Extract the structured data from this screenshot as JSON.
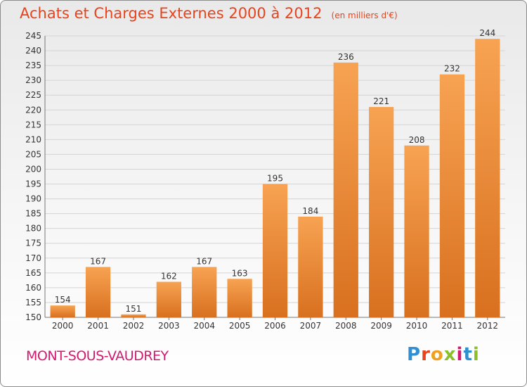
{
  "title": "Achats et Charges Externes 2000 à 2012",
  "unit_note": "(en milliers d'€)",
  "commune": "MONT-SOUS-VAUDREY",
  "logo": {
    "letters": [
      "P",
      "r",
      "o",
      "x",
      "i",
      "t",
      "i"
    ],
    "colors": [
      "#2f8fd0",
      "#e8431c",
      "#f0a020",
      "#8bbf2a",
      "#d11b6f",
      "#2f8fd0",
      "#8bbf2a"
    ]
  },
  "colors": {
    "bar_top": "#f7a352",
    "bar_bottom": "#d8701f",
    "title": "#e8431c",
    "commune": "#d11b6f"
  },
  "chart_data": {
    "type": "bar",
    "title": "Achats et Charges Externes 2000 à 2012",
    "subtitle": "(en milliers d'€)",
    "categories": [
      "2000",
      "2001",
      "2002",
      "2003",
      "2004",
      "2005",
      "2006",
      "2007",
      "2008",
      "2009",
      "2010",
      "2011",
      "2012"
    ],
    "values": [
      154,
      167,
      151,
      162,
      167,
      163,
      195,
      184,
      236,
      221,
      208,
      232,
      244
    ],
    "ylim": [
      150,
      245
    ],
    "yticks": [
      150,
      155,
      160,
      165,
      170,
      175,
      180,
      185,
      190,
      195,
      200,
      205,
      210,
      215,
      220,
      225,
      230,
      235,
      240,
      245
    ],
    "grid": true,
    "xlabel": "",
    "ylabel": ""
  }
}
